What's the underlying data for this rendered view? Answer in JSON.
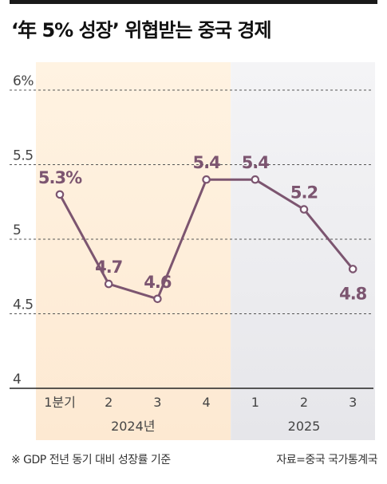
{
  "title": "‘年 5% 성장’ 위협받는 중국 경제",
  "footnote": "※ GDP 전년 동기 대비 성장률 기준",
  "source": "자료=중국 국가통계국",
  "colors": {
    "line": "#7c5570",
    "label": "#7c5570",
    "band_2024_top": "#fff3e2",
    "band_2024_bottom": "#fde9d2",
    "band_2025_top": "#f4f4f6",
    "band_2025_bottom": "#e6e6ea",
    "grid": "#555555",
    "axis_text": "#444444"
  },
  "chart_data": {
    "type": "line",
    "categories": [
      "1분기",
      "2",
      "3",
      "4",
      "1",
      "2",
      "3"
    ],
    "year_groups": [
      {
        "label": "2024년",
        "span": [
          0,
          3
        ]
      },
      {
        "label": "2025",
        "span": [
          4,
          6
        ]
      }
    ],
    "values": [
      5.3,
      4.7,
      4.6,
      5.4,
      5.4,
      5.2,
      4.8
    ],
    "data_labels": [
      "5.3%",
      "4.7",
      "4.6",
      "5.4",
      "5.4",
      "5.2",
      "4.8"
    ],
    "label_side": [
      "above",
      "above",
      "above",
      "above",
      "above",
      "above",
      "below"
    ],
    "yticks": [
      4,
      4.5,
      5,
      5.5,
      6
    ],
    "ytick_labels": [
      "4",
      "4.5",
      "5",
      "5.5",
      "6%"
    ],
    "ylim": [
      4,
      6
    ],
    "grid": true,
    "legend": "none"
  }
}
